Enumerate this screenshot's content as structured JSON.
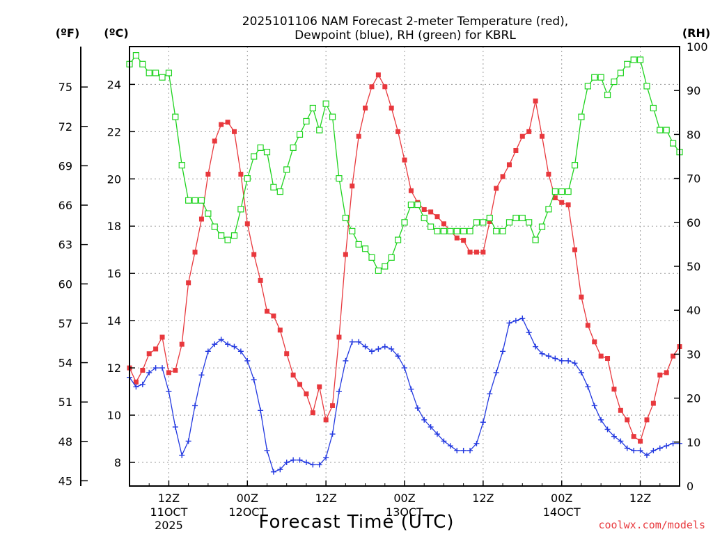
{
  "chart_data": {
    "type": "line",
    "title_line1": "2025101106 NAM Forecast 2-meter Temperature (red),",
    "title_line2": "Dewpoint (blue), RH (green) for KBRL",
    "xlabel": "Forecast Time (UTC)",
    "credit": "coolwx.com/models",
    "axis_labels": {
      "fahrenheit": "(ºF)",
      "celsius": "(ºC)",
      "rh": "(RH)"
    },
    "celsius_axis": {
      "range": [
        7.0,
        25.6
      ],
      "ticks": [
        "8",
        "10",
        "12",
        "14",
        "16",
        "18",
        "20",
        "22",
        "24"
      ]
    },
    "fahrenheit_axis": {
      "ticks": [
        "45",
        "48",
        "51",
        "54",
        "57",
        "60",
        "63",
        "66",
        "69",
        "72",
        "75"
      ]
    },
    "rh_axis": {
      "range": [
        0,
        100
      ],
      "ticks": [
        "0",
        "10",
        "20",
        "30",
        "40",
        "50",
        "60",
        "70",
        "80",
        "90",
        "100"
      ]
    },
    "x_axis": {
      "range_hours_from_run": [
        0,
        84
      ],
      "ticks": [
        {
          "hour": 6,
          "label": "12Z",
          "date": "11OCT",
          "year": "2025"
        },
        {
          "hour": 18,
          "label": "00Z",
          "date": "12OCT",
          "year": ""
        },
        {
          "hour": 30,
          "label": "12Z",
          "date": "",
          "year": ""
        },
        {
          "hour": 42,
          "label": "00Z",
          "date": "13OCT",
          "year": ""
        },
        {
          "hour": 54,
          "label": "12Z",
          "date": "",
          "year": ""
        },
        {
          "hour": 66,
          "label": "00Z",
          "date": "14OCT",
          "year": ""
        },
        {
          "hour": 78,
          "label": "12Z",
          "date": "",
          "year": ""
        }
      ]
    },
    "grid": true,
    "colors": {
      "temperature": "#e8383d",
      "dewpoint": "#2238e0",
      "rh": "#1ed31e"
    },
    "series": [
      {
        "name": "Temperature",
        "units": "ºC",
        "values": [
          12.0,
          11.4,
          11.9,
          12.6,
          12.8,
          13.3,
          11.8,
          11.9,
          13.0,
          15.6,
          16.9,
          18.3,
          20.2,
          21.6,
          22.3,
          22.4,
          22.0,
          20.2,
          18.1,
          16.8,
          15.7,
          14.4,
          14.2,
          13.6,
          12.6,
          11.7,
          11.3,
          10.9,
          10.1,
          11.2,
          9.8,
          10.4,
          13.3,
          16.8,
          19.7,
          21.8,
          23.0,
          23.9,
          24.4,
          23.9,
          23.0,
          22.0,
          20.8,
          19.5,
          19.0,
          18.7,
          18.6,
          18.4,
          18.1,
          17.8,
          17.5,
          17.4,
          16.9,
          16.9,
          16.9,
          18.2,
          19.6,
          20.1,
          20.6,
          21.2,
          21.8,
          22.0,
          23.3,
          21.8,
          20.2,
          19.2,
          19.0,
          18.9,
          17.0,
          15.0,
          13.8,
          13.1,
          12.5,
          12.4,
          11.1,
          10.2,
          9.8,
          9.1,
          8.9,
          9.8,
          10.5,
          11.7,
          11.8,
          12.5,
          12.9
        ]
      },
      {
        "name": "Dewpoint",
        "units": "ºC",
        "values": [
          11.6,
          11.2,
          11.3,
          11.8,
          12.0,
          12.0,
          11.0,
          9.5,
          8.3,
          8.9,
          10.4,
          11.7,
          12.7,
          13.0,
          13.2,
          13.0,
          12.9,
          12.7,
          12.3,
          11.5,
          10.2,
          8.5,
          7.6,
          7.7,
          8.0,
          8.1,
          8.1,
          8.0,
          7.9,
          7.9,
          8.2,
          9.2,
          11.0,
          12.3,
          13.1,
          13.1,
          12.9,
          12.7,
          12.8,
          12.9,
          12.8,
          12.5,
          12.0,
          11.1,
          10.3,
          9.8,
          9.5,
          9.2,
          8.9,
          8.7,
          8.5,
          8.5,
          8.5,
          8.8,
          9.7,
          10.9,
          11.8,
          12.7,
          13.9,
          14.0,
          14.1,
          13.5,
          12.9,
          12.6,
          12.5,
          12.4,
          12.3,
          12.3,
          12.2,
          11.8,
          11.2,
          10.4,
          9.8,
          9.4,
          9.1,
          8.9,
          8.6,
          8.5,
          8.5,
          8.3,
          8.5,
          8.6,
          8.7,
          8.8,
          8.8
        ]
      },
      {
        "name": "RH",
        "units": "%",
        "values": [
          96,
          98,
          96,
          94,
          94,
          93,
          94,
          84,
          73,
          65,
          65,
          65,
          62,
          59,
          57,
          56,
          57,
          63,
          70,
          75,
          77,
          76,
          68,
          67,
          72,
          77,
          80,
          83,
          86,
          81,
          87,
          84,
          70,
          61,
          58,
          55,
          54,
          52,
          49,
          50,
          52,
          56,
          60,
          64,
          64,
          61,
          59,
          58,
          58,
          58,
          58,
          58,
          58,
          60,
          60,
          61,
          58,
          58,
          60,
          61,
          61,
          60,
          56,
          59,
          63,
          67,
          67,
          67,
          73,
          84,
          91,
          93,
          93,
          89,
          92,
          94,
          96,
          97,
          97,
          91,
          86,
          81,
          81,
          78,
          76
        ]
      }
    ]
  }
}
